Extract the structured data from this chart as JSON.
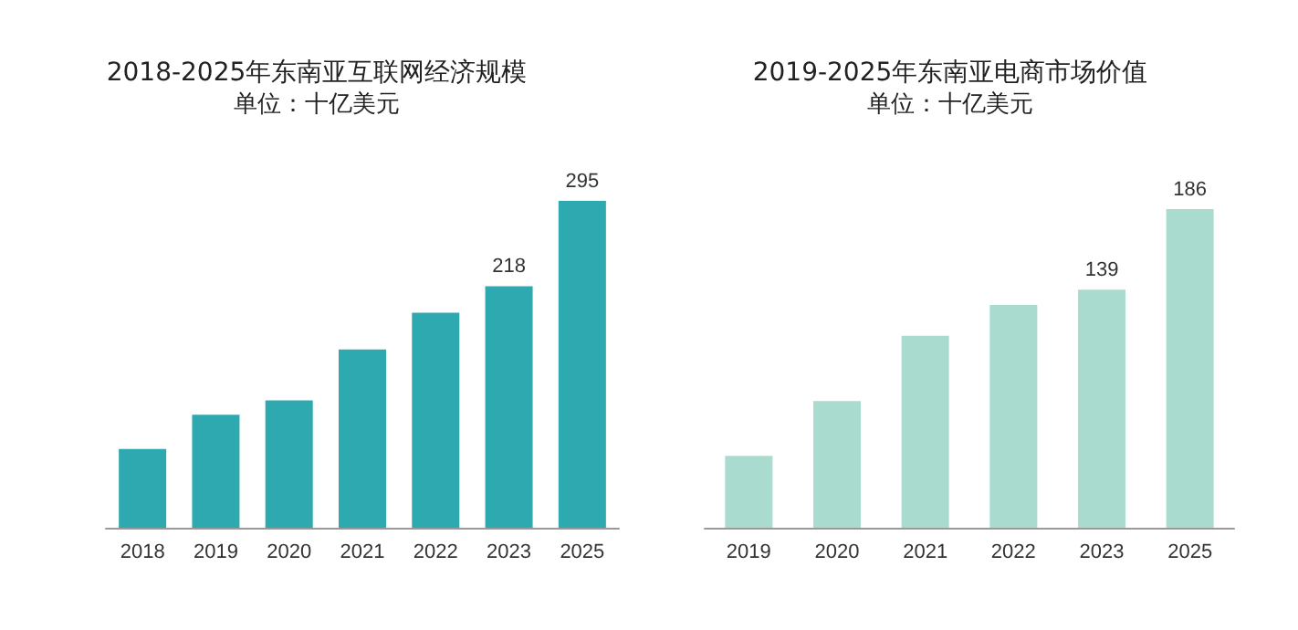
{
  "chart_data": [
    {
      "type": "bar",
      "title": "2018-2025年东南亚互联网经济规模",
      "subtitle": "单位：十亿美元",
      "categories": [
        "2018",
        "2019",
        "2020",
        "2021",
        "2022",
        "2023",
        "2025"
      ],
      "values": [
        71,
        102,
        115,
        161,
        194,
        218,
        295
      ],
      "value_labels": [
        null,
        null,
        null,
        null,
        null,
        "218",
        "295"
      ],
      "color": "#2ea9b0"
    },
    {
      "type": "bar",
      "title": "2019-2025年东南亚电商市场价值",
      "subtitle": "单位：十亿美元",
      "categories": [
        "2019",
        "2020",
        "2021",
        "2022",
        "2023",
        "2025"
      ],
      "values": [
        42,
        74,
        112,
        130,
        139,
        186
      ],
      "value_labels": [
        null,
        null,
        null,
        null,
        "139",
        "186"
      ],
      "color": "#a9dccf"
    }
  ]
}
